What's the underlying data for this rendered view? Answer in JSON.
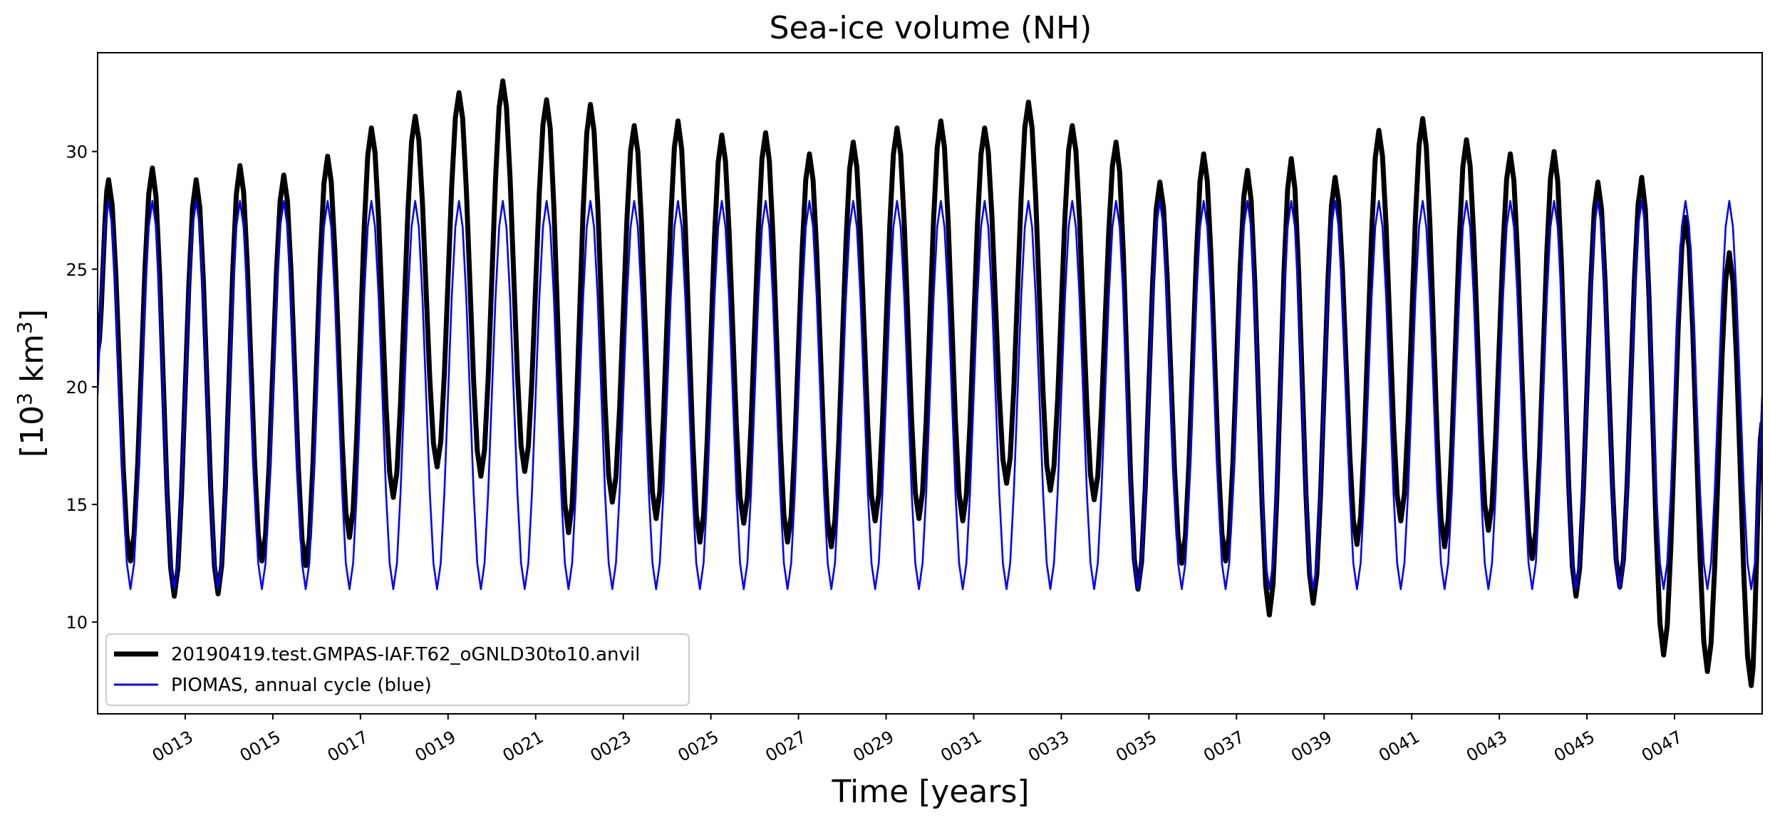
{
  "chart_data": {
    "type": "line",
    "title": "Sea-ice volume (NH)",
    "xlabel": "Time [years]",
    "ylabel_base": "[10",
    "ylabel_sup": "3",
    "ylabel_mid": " km",
    "ylabel_sup2": "3",
    "ylabel_end": "]",
    "xlim": [
      11.0,
      49.0
    ],
    "ylim": [
      6.1,
      34.2
    ],
    "yticks": [
      10,
      15,
      20,
      25,
      30
    ],
    "xticks": [
      13,
      15,
      17,
      19,
      21,
      23,
      25,
      27,
      29,
      31,
      33,
      35,
      37,
      39,
      41,
      43,
      45,
      47
    ],
    "xtick_labels": [
      "0013",
      "0015",
      "0017",
      "0019",
      "0021",
      "0023",
      "0025",
      "0027",
      "0029",
      "0031",
      "0033",
      "0035",
      "0037",
      "0039",
      "0041",
      "0043",
      "0045",
      "0047"
    ],
    "grid": false,
    "legend_position": "lower-left",
    "series": [
      {
        "name": "20190419.test.GMPAS-IAF.T62_oGNLD30to10.anvil",
        "color": "#000000",
        "annual_max": [
          28.8,
          29.3,
          28.8,
          29.4,
          29.0,
          29.8,
          31.0,
          31.5,
          32.5,
          33.0,
          32.2,
          32.0,
          31.1,
          31.3,
          30.7,
          30.8,
          29.9,
          30.4,
          31.0,
          31.3,
          31.0,
          32.1,
          31.1,
          30.4,
          28.7,
          29.9,
          29.2,
          29.7,
          28.9,
          30.9,
          31.4,
          30.5,
          29.9,
          30.0,
          28.7,
          28.9,
          27.2,
          25.7
        ],
        "annual_min": [
          12.6,
          11.1,
          11.2,
          12.6,
          12.4,
          13.6,
          15.3,
          16.6,
          16.2,
          16.4,
          13.8,
          15.1,
          14.4,
          13.4,
          14.2,
          13.4,
          13.2,
          14.3,
          14.4,
          14.3,
          15.9,
          15.6,
          15.2,
          11.4,
          12.5,
          12.6,
          10.3,
          10.8,
          13.3,
          14.3,
          13.2,
          13.9,
          12.7,
          11.1,
          11.5,
          8.6,
          7.9,
          7.3
        ],
        "start_value": 21.5,
        "end_value": 18.5
      },
      {
        "name": "PIOMAS, annual cycle (blue)",
        "color": "#0000ff",
        "cycle_max": 27.9,
        "cycle_min": 11.4
      }
    ]
  }
}
